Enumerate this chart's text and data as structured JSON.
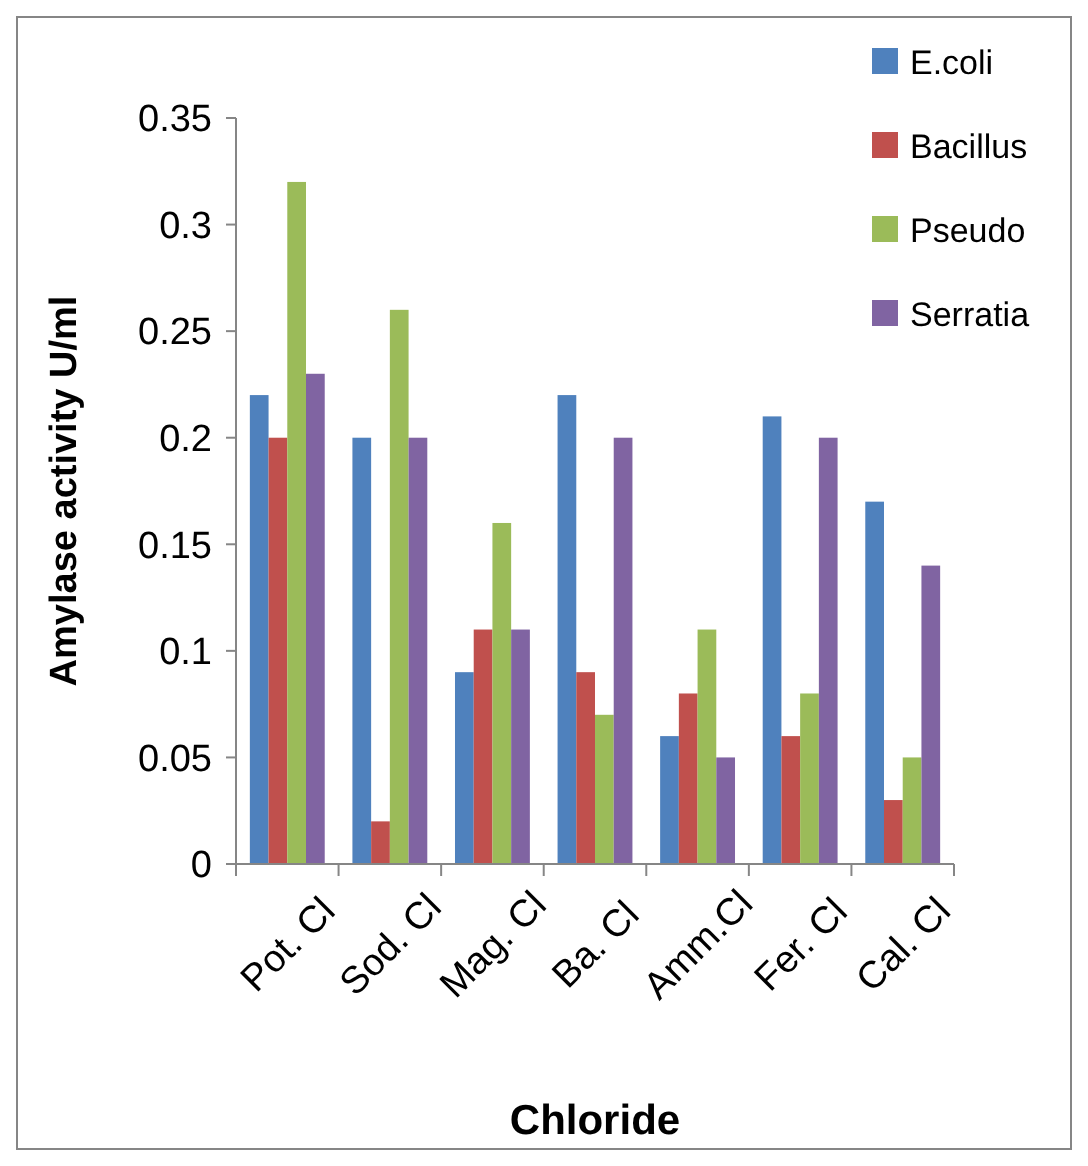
{
  "chart_data": {
    "type": "bar",
    "xlabel": "Chloride",
    "ylabel": "Amylase activity U/ml",
    "categories": [
      "Pot. Cl",
      "Sod. Cl",
      "Mag. Cl",
      "Ba. Cl",
      "Amm.Cl",
      "Fer. Cl",
      "Cal. Cl"
    ],
    "series": [
      {
        "name": "E.coli",
        "color": "#4f81bd",
        "values": [
          0.22,
          0.2,
          0.09,
          0.22,
          0.06,
          0.21,
          0.17
        ]
      },
      {
        "name": "Bacillus",
        "color": "#c0504d",
        "values": [
          0.2,
          0.02,
          0.11,
          0.09,
          0.08,
          0.06,
          0.03
        ]
      },
      {
        "name": "Pseudo",
        "color": "#9bbb59",
        "values": [
          0.32,
          0.26,
          0.16,
          0.07,
          0.11,
          0.08,
          0.05
        ]
      },
      {
        "name": "Serratia",
        "color": "#8064a2",
        "values": [
          0.23,
          0.2,
          0.11,
          0.2,
          0.05,
          0.2,
          0.14
        ]
      }
    ],
    "ylim": [
      0,
      0.35
    ],
    "yticks": [
      0,
      0.05,
      0.1,
      0.15,
      0.2,
      0.25,
      0.3,
      0.35
    ],
    "grid": false,
    "legend": "top right"
  }
}
